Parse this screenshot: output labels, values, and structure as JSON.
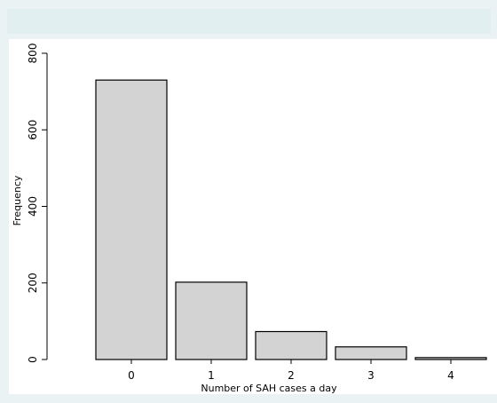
{
  "chart_data": {
    "type": "bar",
    "categories": [
      "0",
      "1",
      "2",
      "3",
      "4"
    ],
    "values": [
      730,
      202,
      73,
      33,
      5
    ],
    "xlabel": "Number of SAH cases a day",
    "ylabel": "Frequency",
    "ylim": [
      0,
      800
    ],
    "yticks": [
      0,
      200,
      400,
      600,
      800
    ],
    "grid": false,
    "bar_color": "#d3d3d3",
    "bar_edge_color": "#000000"
  }
}
